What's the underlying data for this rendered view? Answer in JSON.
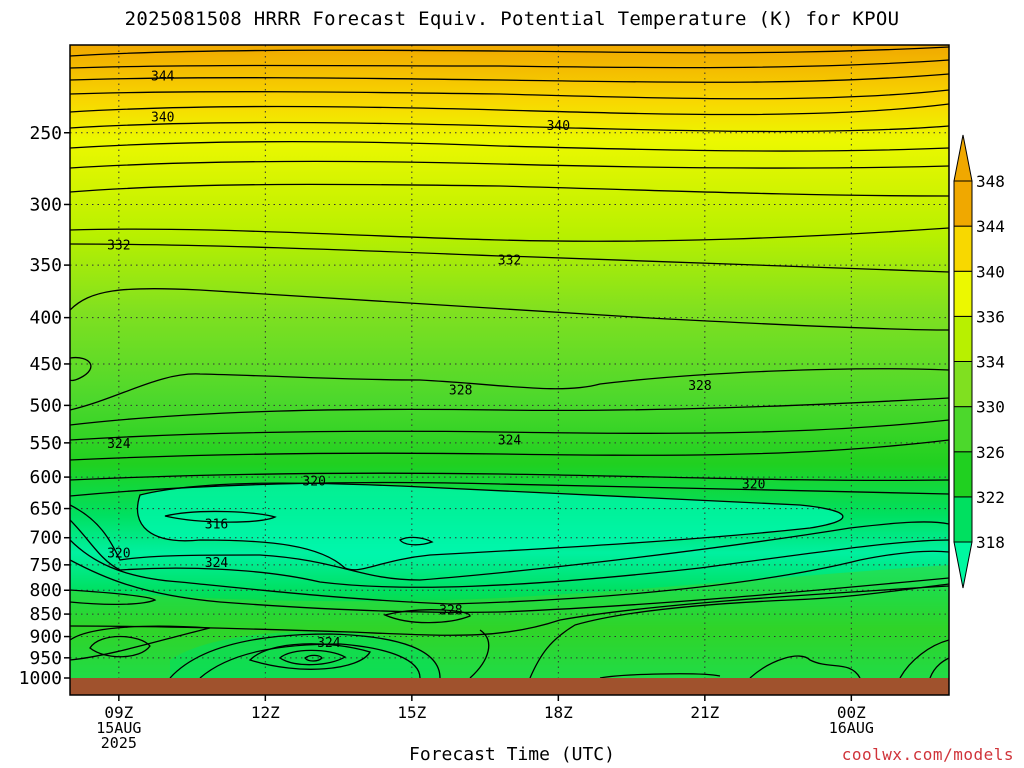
{
  "chart_data": {
    "type": "heatmap",
    "title": "2025081508 HRRR Forecast Equiv. Potential Temperature (K) for KPOU",
    "xlabel": "Forecast Time (UTC)",
    "ylabel": "",
    "credit": "coolwx.com/models",
    "y_axis": {
      "scale": "log-pressure",
      "range_hPa": [
        1000,
        200
      ],
      "ticks": [
        250,
        300,
        350,
        400,
        450,
        500,
        550,
        600,
        650,
        700,
        750,
        800,
        850,
        900,
        950,
        1000
      ]
    },
    "x_axis": {
      "range_hours_utc": [
        8,
        26
      ],
      "ticks": [
        {
          "hour": 9,
          "lines": [
            "09Z",
            "15AUG",
            "2025"
          ]
        },
        {
          "hour": 12,
          "lines": [
            "12Z"
          ]
        },
        {
          "hour": 15,
          "lines": [
            "15Z"
          ]
        },
        {
          "hour": 18,
          "lines": [
            "18Z"
          ]
        },
        {
          "hour": 21,
          "lines": [
            "21Z"
          ]
        },
        {
          "hour": 24,
          "lines": [
            "00Z",
            "16AUG"
          ]
        }
      ]
    },
    "grid": true,
    "colorbar": {
      "placement": "right",
      "levels": [
        318,
        322,
        326,
        330,
        334,
        336,
        340,
        344,
        348
      ],
      "colors": [
        "#00f8a0",
        "#00e060",
        "#20d020",
        "#4cd82c",
        "#80e020",
        "#b8f000",
        "#ecf800",
        "#f8d800",
        "#f0a800"
      ]
    },
    "contour_labels": [
      {
        "value": "344",
        "hour": 9.9,
        "p": 216
      },
      {
        "value": "340",
        "hour": 9.9,
        "p": 240
      },
      {
        "value": "340",
        "hour": 18.0,
        "p": 245
      },
      {
        "value": "332",
        "hour": 9.0,
        "p": 332
      },
      {
        "value": "332",
        "hour": 17.0,
        "p": 345
      },
      {
        "value": "328",
        "hour": 16.0,
        "p": 480
      },
      {
        "value": "328",
        "hour": 20.9,
        "p": 475
      },
      {
        "value": "324",
        "hour": 9.0,
        "p": 550
      },
      {
        "value": "324",
        "hour": 17.0,
        "p": 545
      },
      {
        "value": "320",
        "hour": 13.0,
        "p": 605
      },
      {
        "value": "320",
        "hour": 22.0,
        "p": 610
      },
      {
        "value": "316",
        "hour": 11.0,
        "p": 675
      },
      {
        "value": "320",
        "hour": 9.0,
        "p": 727
      },
      {
        "value": "324",
        "hour": 11.0,
        "p": 745
      },
      {
        "value": "328",
        "hour": 15.8,
        "p": 840
      },
      {
        "value": "324",
        "hour": 13.3,
        "p": 912
      }
    ],
    "field_samples": {
      "hours": [
        8,
        9,
        10,
        11,
        12,
        13,
        14,
        15,
        16,
        17,
        18,
        19,
        20,
        21,
        22,
        23,
        24,
        25,
        26
      ],
      "profiles": [
        {
          "p": 200,
          "values": [
            347,
            347,
            347,
            347,
            347,
            347,
            347,
            347,
            347,
            347,
            347,
            347,
            347,
            347,
            347,
            348,
            348,
            348,
            348
          ]
        },
        {
          "p": 250,
          "values": [
            340,
            340,
            340,
            339,
            339,
            339,
            339,
            339,
            339,
            339,
            339,
            339,
            339,
            339,
            340,
            340,
            341,
            341,
            341
          ]
        },
        {
          "p": 300,
          "values": [
            336,
            336,
            336,
            336,
            336,
            336,
            336,
            336,
            336,
            335,
            335,
            335,
            335,
            335,
            335,
            335,
            335,
            335,
            335
          ]
        },
        {
          "p": 350,
          "values": [
            332,
            332,
            332,
            332,
            332,
            332,
            332,
            332,
            332,
            332,
            332,
            332,
            332,
            332,
            332,
            332,
            331,
            331,
            331
          ]
        },
        {
          "p": 400,
          "values": [
            331,
            330,
            331,
            331,
            331,
            330,
            330,
            330,
            330,
            330,
            330,
            330,
            330,
            330,
            330,
            330,
            330,
            330,
            330
          ]
        },
        {
          "p": 500,
          "values": [
            327,
            327,
            327,
            327,
            327,
            327,
            327,
            327,
            327,
            327,
            327,
            327,
            327,
            327,
            328,
            328,
            328,
            328,
            328
          ]
        },
        {
          "p": 600,
          "values": [
            322,
            322,
            322,
            322,
            322,
            321,
            321,
            321,
            321,
            321,
            321,
            321,
            321,
            321,
            321,
            322,
            322,
            322,
            322
          ]
        },
        {
          "p": 700,
          "values": [
            323,
            322,
            318,
            317,
            317,
            318,
            318,
            318,
            318,
            318,
            319,
            319,
            320,
            321,
            322,
            323,
            324,
            324,
            323
          ]
        },
        {
          "p": 800,
          "values": [
            328,
            327,
            326,
            325,
            324,
            324,
            325,
            326,
            327,
            327,
            328,
            328,
            328,
            329,
            329,
            329,
            329,
            328,
            328
          ]
        },
        {
          "p": 900,
          "values": [
            329,
            328,
            327,
            327,
            326,
            325,
            325,
            326,
            327,
            328,
            329,
            329,
            329,
            329,
            329,
            329,
            329,
            329,
            329
          ]
        },
        {
          "p": 1000,
          "values": [
            329,
            328,
            327,
            327,
            327,
            326,
            326,
            327,
            328,
            329,
            329,
            329,
            329,
            329,
            329,
            329,
            329,
            329,
            329
          ]
        }
      ]
    }
  }
}
